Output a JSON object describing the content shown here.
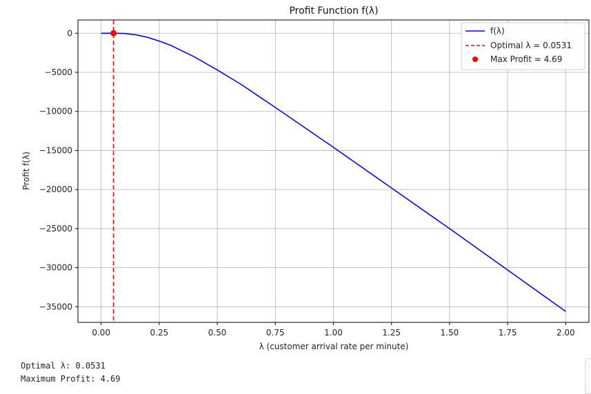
{
  "chart_data": {
    "type": "line",
    "title": "Profit Function f(λ)",
    "xlabel": "λ (customer arrival rate per minute)",
    "ylabel": "Profit f(λ)",
    "xlim": [
      -0.1,
      2.1
    ],
    "ylim": [
      -37000,
      1700
    ],
    "xticks": [
      0.0,
      0.25,
      0.5,
      0.75,
      1.0,
      1.25,
      1.5,
      1.75,
      2.0
    ],
    "xtick_labels": [
      "0.00",
      "0.25",
      "0.50",
      "0.75",
      "1.00",
      "1.25",
      "1.50",
      "1.75",
      "2.00"
    ],
    "yticks": [
      0,
      -5000,
      -10000,
      -15000,
      -20000,
      -25000,
      -30000,
      -35000
    ],
    "ytick_labels": [
      "0",
      "−5000",
      "−10000",
      "−15000",
      "−20000",
      "−25000",
      "−30000",
      "−35000"
    ],
    "grid": true,
    "legend_position": "top-right",
    "series": [
      {
        "name": "f(λ)",
        "color": "#0000ff",
        "x": [
          0.0,
          0.0531,
          0.1,
          0.15,
          0.2,
          0.25,
          0.3,
          0.4,
          0.5,
          0.6,
          0.75,
          1.0,
          1.25,
          1.5,
          1.75,
          2.0
        ],
        "y": [
          0,
          4.69,
          -30,
          -200,
          -520,
          -1000,
          -1550,
          -3000,
          -4700,
          -6500,
          -9500,
          -14600,
          -19800,
          -25000,
          -30300,
          -35600
        ]
      }
    ],
    "optimal_line": {
      "name": "Optimal λ = 0.0531",
      "x": 0.0531,
      "color": "#ff0000",
      "style": "dashed"
    },
    "max_point": {
      "name": "Max Profit = 4.69",
      "x": 0.0531,
      "y": 4.69,
      "color": "#ff0000"
    }
  },
  "console": {
    "line1": "Optimal λ: 0.0531",
    "line2": "Maximum Profit: 4.69"
  }
}
